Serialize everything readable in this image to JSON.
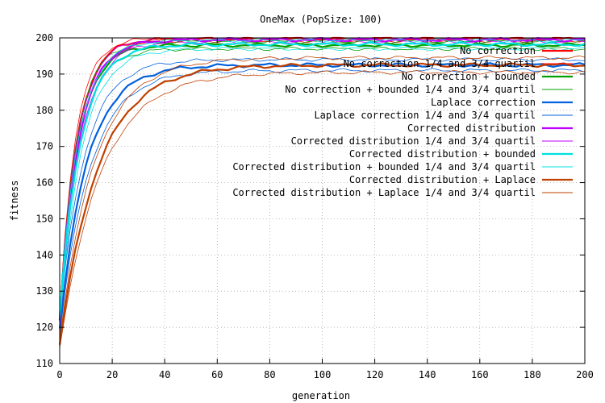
{
  "chart_data": {
    "type": "line",
    "title": "OneMax (PopSize: 100)",
    "xlabel": "generation",
    "ylabel": "fitness",
    "xlim": [
      0,
      200
    ],
    "ylim": [
      110,
      200
    ],
    "xticks": [
      0,
      20,
      40,
      60,
      80,
      100,
      120,
      140,
      160,
      180,
      200
    ],
    "yticks": [
      110,
      120,
      130,
      140,
      150,
      160,
      170,
      180,
      190,
      200
    ],
    "grid": true,
    "legend_position": "top-right",
    "series": [
      {
        "name": "No correction",
        "color": "#ff0000",
        "style": "mean",
        "y0": 122,
        "final": 199.8,
        "tau": 6.5
      },
      {
        "name": "No correction 1/4 and 3/4 quartil",
        "color": "#ff0000",
        "style": "quartile",
        "bands": [
          {
            "y0": 120,
            "final": 199.2,
            "tau": 7.0
          },
          {
            "y0": 124,
            "final": 200,
            "tau": 6.0
          }
        ]
      },
      {
        "name": "No correction + bounded",
        "color": "#00a000",
        "style": "mean",
        "y0": 122,
        "final": 198.0,
        "tau": 6.8
      },
      {
        "name": "No correction + bounded 1/4 and 3/4 quartil",
        "color": "#00a000",
        "style": "quartile",
        "bands": [
          {
            "y0": 120,
            "final": 197.0,
            "tau": 7.2
          },
          {
            "y0": 124,
            "final": 199.0,
            "tau": 6.4
          }
        ]
      },
      {
        "name": "Laplace correction",
        "color": "#0060dd",
        "style": "mean",
        "y0": 120,
        "final": 192.5,
        "tau": 10.5
      },
      {
        "name": "Laplace correction 1/4 and 3/4 quartil",
        "color": "#0060dd",
        "style": "quartile",
        "bands": [
          {
            "y0": 118,
            "final": 191.0,
            "tau": 11.5
          },
          {
            "y0": 122,
            "final": 194.0,
            "tau": 9.5
          }
        ]
      },
      {
        "name": "Corrected distribution",
        "color": "#c000ff",
        "style": "mean",
        "y0": 122,
        "final": 199.5,
        "tau": 7.2
      },
      {
        "name": "Corrected distribution 1/4 and 3/4 quartil",
        "color": "#c000ff",
        "style": "quartile",
        "bands": [
          {
            "y0": 120,
            "final": 199.0,
            "tau": 7.6
          },
          {
            "y0": 124,
            "final": 200,
            "tau": 6.8
          }
        ]
      },
      {
        "name": "Corrected distribution + bounded",
        "color": "#00e0e0",
        "style": "mean",
        "y0": 123,
        "final": 198.2,
        "tau": 7.8
      },
      {
        "name": "Corrected distribution + bounded 1/4 and 3/4 quartil",
        "color": "#00e0e0",
        "style": "quartile",
        "bands": [
          {
            "y0": 121,
            "final": 197.0,
            "tau": 8.4
          },
          {
            "y0": 125,
            "final": 199.3,
            "tau": 7.2
          }
        ]
      },
      {
        "name": "Corrected distribution + Laplace",
        "color": "#c04000",
        "style": "mean",
        "y0": 115,
        "final": 192.5,
        "tau": 14.5
      },
      {
        "name": "Corrected distribution + Laplace 1/4 and 3/4 quartil",
        "color": "#c04000",
        "style": "quartile",
        "bands": [
          {
            "y0": 114,
            "final": 190.5,
            "tau": 15.5
          },
          {
            "y0": 117,
            "final": 194.5,
            "tau": 13.5
          }
        ]
      }
    ]
  }
}
